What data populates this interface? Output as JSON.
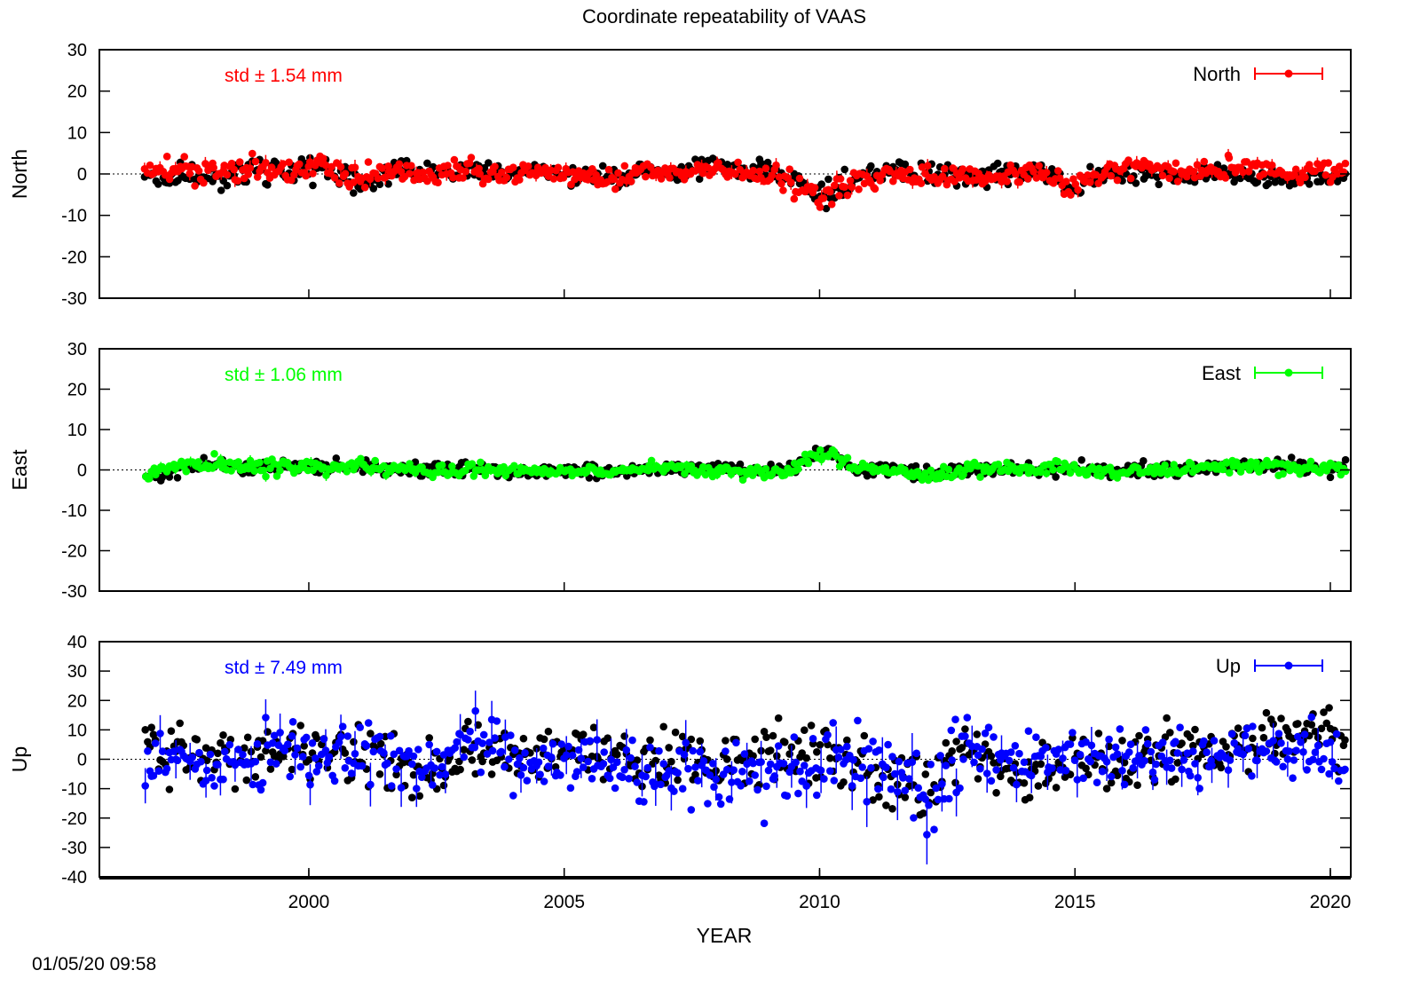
{
  "chart_data": {
    "type": "scatter",
    "title": "Coordinate repeatability of VAAS",
    "xlabel": "YEAR",
    "xlim": [
      1995.9,
      2020.4
    ],
    "x_ticks": [
      2000,
      2005,
      2010,
      2015,
      2020
    ],
    "timestamp": "01/05/20 09:58",
    "panels": [
      {
        "id": "north",
        "ylabel": "North",
        "ylim": [
          -30,
          30
        ],
        "y_ticks": [
          -30,
          -20,
          -10,
          0,
          10,
          20,
          30
        ],
        "std_label": "std ± 1.54 mm",
        "legend": "North",
        "legend_position": "top-right",
        "color": "#ff0000",
        "raw_color": "#000000",
        "x": [
          1996.8,
          1997.5,
          1998.2,
          1998.9,
          1999.6,
          2000.3,
          2001.0,
          2001.7,
          2002.4,
          2003.1,
          2003.8,
          2004.5,
          2005.2,
          2005.9,
          2006.6,
          2007.3,
          2008.0,
          2008.7,
          2009.4,
          2010.1,
          2010.8,
          2011.5,
          2012.2,
          2012.9,
          2013.6,
          2014.3,
          2015.0,
          2015.7,
          2016.4,
          2017.1,
          2017.8,
          2018.5,
          2019.2,
          2019.9,
          2020.3
        ],
        "y": [
          0.5,
          1.2,
          0.0,
          1.8,
          0.7,
          2.5,
          -1.5,
          0.8,
          -0.6,
          1.0,
          -0.4,
          0.3,
          -0.8,
          -1.2,
          0.6,
          -0.2,
          0.9,
          0.2,
          -1.8,
          -5.5,
          -1.0,
          0.4,
          -0.9,
          -1.4,
          -0.3,
          0.8,
          -3.5,
          1.6,
          1.1,
          0.4,
          0.9,
          1.2,
          0.0,
          0.8,
          0.7
        ],
        "spread": [
          2.5,
          2.8,
          2.6,
          3.2,
          3.0,
          3.0,
          3.1,
          2.9,
          2.7,
          2.8,
          2.5,
          2.4,
          2.6,
          2.5,
          2.4,
          2.6,
          2.8,
          2.9,
          2.9,
          3.5,
          3.0,
          2.8,
          2.7,
          2.9,
          2.7,
          2.6,
          3.0,
          2.8,
          2.7,
          2.6,
          2.6,
          2.5,
          2.5,
          2.5,
          2.4
        ],
        "raw_offset": [
          -1.5,
          -1.8,
          -1.2,
          -1.0,
          -0.8,
          -0.6,
          -0.4,
          0.0,
          0.4,
          0.6,
          0.5,
          0.3,
          0.2,
          0.3,
          0.5,
          0.8,
          1.0,
          1.2,
          0.9,
          0.2,
          0.5,
          0.8,
          1.0,
          0.8,
          0.4,
          0.2,
          -0.4,
          -0.8,
          -1.0,
          -1.2,
          -0.8,
          -1.0,
          -1.3,
          -1.5,
          -1.2
        ]
      },
      {
        "id": "east",
        "ylabel": "East",
        "ylim": [
          -30,
          30
        ],
        "y_ticks": [
          -30,
          -20,
          -10,
          0,
          10,
          20,
          30
        ],
        "std_label": "std ± 1.06 mm",
        "legend": "East",
        "legend_position": "top-right",
        "color": "#00ff00",
        "raw_color": "#000000",
        "x": [
          1996.8,
          1997.5,
          1998.2,
          1998.9,
          1999.6,
          2000.3,
          2001.0,
          2001.7,
          2002.4,
          2003.1,
          2003.8,
          2004.5,
          2005.2,
          2005.9,
          2006.6,
          2007.3,
          2008.0,
          2008.7,
          2009.4,
          2010.1,
          2010.8,
          2011.5,
          2012.2,
          2012.9,
          2013.6,
          2014.3,
          2015.0,
          2015.7,
          2016.4,
          2017.1,
          2017.8,
          2018.5,
          2019.2,
          2019.9,
          2020.3
        ],
        "y": [
          -1.0,
          0.8,
          1.5,
          0.6,
          1.0,
          0.5,
          1.2,
          0.4,
          -0.3,
          0.2,
          -0.4,
          0.0,
          -0.2,
          -0.5,
          0.3,
          0.5,
          -0.4,
          -0.8,
          0.2,
          5.0,
          0.6,
          0.0,
          -1.8,
          0.3,
          0.5,
          0.0,
          0.6,
          -0.9,
          0.2,
          -0.2,
          0.6,
          1.0,
          0.7,
          0.5,
          0.9
        ],
        "spread": [
          2.0,
          2.2,
          2.1,
          2.2,
          2.0,
          2.3,
          2.1,
          1.9,
          1.8,
          1.9,
          1.8,
          1.7,
          1.8,
          1.8,
          1.7,
          1.8,
          1.9,
          1.9,
          1.8,
          2.5,
          1.9,
          1.8,
          2.0,
          1.8,
          1.8,
          1.7,
          1.9,
          1.8,
          1.7,
          1.7,
          1.8,
          1.8,
          1.7,
          1.7,
          1.7
        ],
        "raw_offset": [
          -0.8,
          -0.9,
          -0.6,
          0.5,
          0.3,
          0.0,
          -0.5,
          -0.3,
          0.4,
          0.5,
          -0.2,
          -0.2,
          0.2,
          0.0,
          0.1,
          -0.2,
          0.6,
          0.2,
          -0.1,
          -0.5,
          -0.3,
          0.2,
          0.6,
          -0.2,
          -0.4,
          -0.3,
          -0.2,
          0.3,
          0.0,
          0.3,
          0.4,
          -0.3,
          0.3,
          -0.4,
          -0.2
        ]
      },
      {
        "id": "up",
        "ylabel": "Up",
        "ylim": [
          -40,
          40
        ],
        "y_ticks": [
          -40,
          -30,
          -20,
          -10,
          0,
          10,
          20,
          30,
          40
        ],
        "std_label": "std ± 7.49 mm",
        "legend": "Up",
        "legend_position": "top-right",
        "color": "#0000ff",
        "raw_color": "#000000",
        "x": [
          1996.8,
          1997.5,
          1998.2,
          1998.9,
          1999.6,
          2000.3,
          2001.0,
          2001.7,
          2002.4,
          2003.1,
          2003.8,
          2004.5,
          2005.2,
          2005.9,
          2006.6,
          2007.3,
          2008.0,
          2008.7,
          2009.4,
          2010.1,
          2010.8,
          2011.5,
          2012.2,
          2012.9,
          2013.6,
          2014.3,
          2015.0,
          2015.7,
          2016.4,
          2017.1,
          2017.8,
          2018.5,
          2019.2,
          2019.9,
          2020.3
        ],
        "y": [
          2.0,
          -1.0,
          -2.0,
          0.0,
          3.0,
          4.0,
          6.0,
          0.0,
          -3.0,
          8.0,
          0.0,
          -2.0,
          0.0,
          -3.0,
          -4.0,
          -3.0,
          -6.0,
          -5.0,
          -4.0,
          -2.0,
          -2.0,
          -8.0,
          -10.0,
          4.0,
          2.0,
          0.0,
          2.0,
          -2.0,
          0.0,
          1.0,
          0.0,
          3.0,
          4.0,
          1.0,
          0.0
        ],
        "spread": [
          10,
          11,
          9,
          10,
          11,
          12,
          13,
          11,
          10,
          12,
          10,
          10,
          11,
          12,
          12,
          13,
          12,
          12,
          12,
          13,
          14,
          16,
          17,
          12,
          10,
          10,
          10,
          11,
          10,
          10,
          10,
          10,
          10,
          10,
          10
        ],
        "raw_offset": [
          2.0,
          3.0,
          3.5,
          2.0,
          0.0,
          -2.0,
          -3.0,
          -1.0,
          0.0,
          -2.0,
          0.0,
          2.0,
          3.0,
          4.0,
          5.0,
          6.0,
          7.0,
          6.0,
          5.0,
          3.0,
          2.0,
          1.0,
          3.0,
          -2.0,
          -5.0,
          -4.0,
          -3.0,
          -1.0,
          0.0,
          1.0,
          2.0,
          4.0,
          5.0,
          6.0,
          5.0
        ]
      }
    ]
  }
}
